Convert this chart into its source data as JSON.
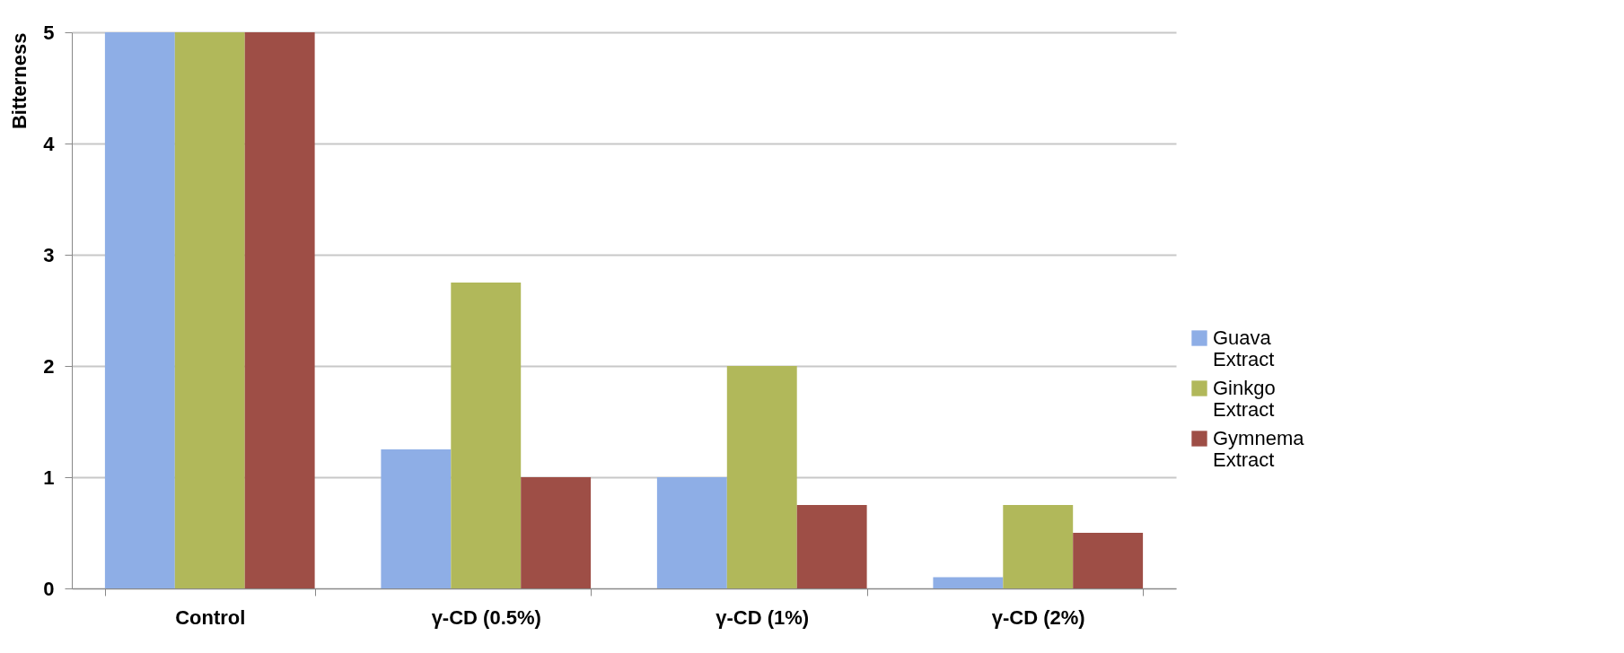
{
  "chart_data": {
    "type": "bar",
    "ylabel": "Bitterness",
    "categories": [
      "Control",
      "γ-CD (0.5%)",
      "γ-CD (1%)",
      "γ-CD (2%)"
    ],
    "series": [
      {
        "name": "Guava Extract",
        "color": "#8eaee6",
        "values": [
          5,
          1.25,
          1,
          0.1
        ]
      },
      {
        "name": "Ginkgo Extract",
        "color": "#b1b85a",
        "values": [
          5,
          2.75,
          2,
          0.75
        ]
      },
      {
        "name": "Gymnema Extract",
        "color": "#9e4e46",
        "values": [
          5,
          1,
          0.75,
          0.5
        ]
      }
    ],
    "ylim": [
      0,
      5
    ],
    "yticks": [
      0,
      1,
      2,
      3,
      4,
      5
    ],
    "grid": "y",
    "legend": "right"
  }
}
